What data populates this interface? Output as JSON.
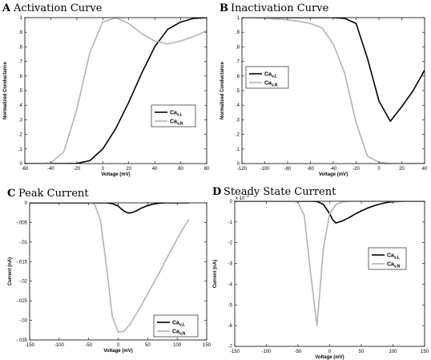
{
  "chart_data": [
    {
      "id": "A",
      "type": "line",
      "letter": "A",
      "title": "Activation Curve",
      "xlabel": "Voltage (mV)",
      "ylabel": "Normalized Conductance",
      "xlim": [
        -60,
        80
      ],
      "ylim": [
        0,
        1
      ],
      "xticks": [
        -60,
        -40,
        -20,
        0,
        20,
        40,
        60,
        80
      ],
      "yticks": [
        0,
        0.1,
        0.2,
        0.3,
        0.4,
        0.5,
        0.6,
        0.7,
        0.8,
        0.9,
        1
      ],
      "grid": false,
      "legend_position": "center-right",
      "series": [
        {
          "name": "Ca_v,L",
          "name_main": "Ca",
          "name_sub": "v,L",
          "color": "#000000",
          "x": [
            -60,
            -50,
            -40,
            -30,
            -20,
            -10,
            0,
            10,
            20,
            30,
            40,
            50,
            60,
            70,
            80
          ],
          "y": [
            0,
            0,
            0,
            0,
            0.001,
            0.02,
            0.1,
            0.24,
            0.42,
            0.62,
            0.8,
            0.92,
            0.97,
            0.995,
            1.0
          ]
        },
        {
          "name": "Ca_v,N",
          "name_main": "Ca",
          "name_sub": "v,N",
          "color": "#b3b3b3",
          "x": [
            -60,
            -50,
            -40,
            -30,
            -20,
            -10,
            0,
            10,
            20,
            30,
            40,
            50,
            60,
            70,
            80
          ],
          "y": [
            0,
            0,
            0.005,
            0.08,
            0.37,
            0.76,
            0.97,
            1.0,
            0.96,
            0.89,
            0.84,
            0.82,
            0.84,
            0.87,
            0.91
          ]
        }
      ]
    },
    {
      "id": "B",
      "type": "line",
      "letter": "B",
      "title": "Inactivation Curve",
      "xlabel": "Voltage (mV)",
      "ylabel": "Normalized Conductance",
      "xlim": [
        -120,
        40
      ],
      "ylim": [
        0,
        1
      ],
      "xticks": [
        -120,
        -100,
        -80,
        -60,
        -40,
        -20,
        0,
        20,
        40
      ],
      "yticks": [
        0,
        0.1,
        0.2,
        0.3,
        0.4,
        0.5,
        0.6,
        0.7,
        0.8,
        0.9,
        1
      ],
      "grid": false,
      "legend_position": "center-left",
      "series": [
        {
          "name": "Ca_v,L",
          "name_main": "Ca",
          "name_sub": "v,L",
          "color": "#000000",
          "x": [
            -120,
            -100,
            -80,
            -60,
            -40,
            -30,
            -20,
            -10,
            0,
            10,
            20,
            30,
            40
          ],
          "y": [
            1,
            1,
            1,
            1,
            1,
            0.995,
            0.96,
            0.72,
            0.43,
            0.29,
            0.39,
            0.5,
            0.64
          ]
        },
        {
          "name": "Ca_v,N",
          "name_main": "Ca",
          "name_sub": "v,N",
          "color": "#b3b3b3",
          "x": [
            -120,
            -100,
            -80,
            -70,
            -60,
            -50,
            -40,
            -30,
            -20,
            -10,
            0,
            10,
            20,
            30,
            40
          ],
          "y": [
            1,
            0.995,
            0.985,
            0.975,
            0.96,
            0.93,
            0.82,
            0.62,
            0.28,
            0.05,
            0.01,
            0,
            0,
            0,
            0
          ]
        }
      ]
    },
    {
      "id": "C",
      "type": "line",
      "letter": "C",
      "title": "Peak Current",
      "xlabel": "Voltage (mV)",
      "ylabel": "Current (nA)",
      "xlim": [
        -150,
        150
      ],
      "ylim": [
        -0.035,
        0
      ],
      "xticks": [
        -150,
        -100,
        -50,
        0,
        50,
        100,
        150
      ],
      "yticks": [
        -0.035,
        -0.03,
        -0.025,
        -0.02,
        -0.015,
        -0.01,
        -0.005,
        0
      ],
      "grid": false,
      "legend_position": "bottom-right",
      "series": [
        {
          "name": "Ca_v,L",
          "name_main": "Ca",
          "name_sub": "v,L",
          "color": "#000000",
          "x": [
            -150,
            -50,
            -30,
            -20,
            -10,
            0,
            5,
            10,
            15,
            20,
            25,
            30,
            40,
            50,
            60,
            70,
            80,
            100,
            120
          ],
          "y": [
            0,
            0,
            0,
            0,
            -0.0002,
            -0.0008,
            -0.0015,
            -0.0021,
            -0.0025,
            -0.0026,
            -0.0024,
            -0.0021,
            -0.0013,
            -0.0007,
            -0.0003,
            -0.0001,
            0,
            0,
            0
          ]
        },
        {
          "name": "Ca_v,N",
          "name_main": "Ca",
          "name_sub": "v,N",
          "color": "#b3b3b3",
          "x": [
            -50,
            -40,
            -30,
            -20,
            -10,
            0,
            10,
            20,
            30,
            40,
            50,
            60,
            70,
            80,
            90,
            100,
            110,
            120
          ],
          "y": [
            0,
            -0.0003,
            -0.0045,
            -0.016,
            -0.029,
            -0.033,
            -0.0328,
            -0.031,
            -0.0285,
            -0.026,
            -0.0232,
            -0.0205,
            -0.0178,
            -0.0148,
            -0.012,
            -0.0092,
            -0.0065,
            -0.0042
          ]
        }
      ]
    },
    {
      "id": "D",
      "type": "line",
      "letter": "D",
      "title": "Steady State Current",
      "xlabel": "Voltage (mV)",
      "ylabel": "Current (nA)",
      "y_multiplier_base": "x 10",
      "y_multiplier_exp": "-3",
      "xlim": [
        -150,
        150
      ],
      "ylim": [
        -7,
        0
      ],
      "xticks": [
        -150,
        -100,
        -50,
        0,
        50,
        100,
        150
      ],
      "yticks": [
        -7,
        -6,
        -5,
        -4,
        -3,
        -2,
        -1,
        0
      ],
      "grid": false,
      "legend_position": "right",
      "series": [
        {
          "name": "Ca_v,L",
          "name_main": "Ca",
          "name_sub": "v,L",
          "color": "#000000",
          "x": [
            -150,
            -50,
            -30,
            -20,
            -10,
            0,
            5,
            10,
            20,
            30,
            40,
            50,
            60,
            70,
            80,
            90,
            100,
            120,
            150
          ],
          "y": [
            0,
            0,
            0,
            -0.01,
            -0.15,
            -0.6,
            -0.9,
            -1.05,
            -0.95,
            -0.8,
            -0.62,
            -0.47,
            -0.33,
            -0.22,
            -0.13,
            -0.06,
            -0.02,
            0,
            0
          ]
        },
        {
          "name": "Ca_v,N",
          "name_main": "Ca",
          "name_sub": "v,N",
          "color": "#b3b3b3",
          "x": [
            -150,
            -60,
            -50,
            -40,
            -30,
            -20,
            -10,
            0,
            10,
            20,
            30,
            40,
            50,
            150
          ],
          "y": [
            0,
            0,
            -0.05,
            -0.7,
            -3.5,
            -6.0,
            -2.3,
            -0.6,
            -0.15,
            -0.03,
            -0.01,
            0,
            0,
            0
          ]
        }
      ]
    }
  ]
}
